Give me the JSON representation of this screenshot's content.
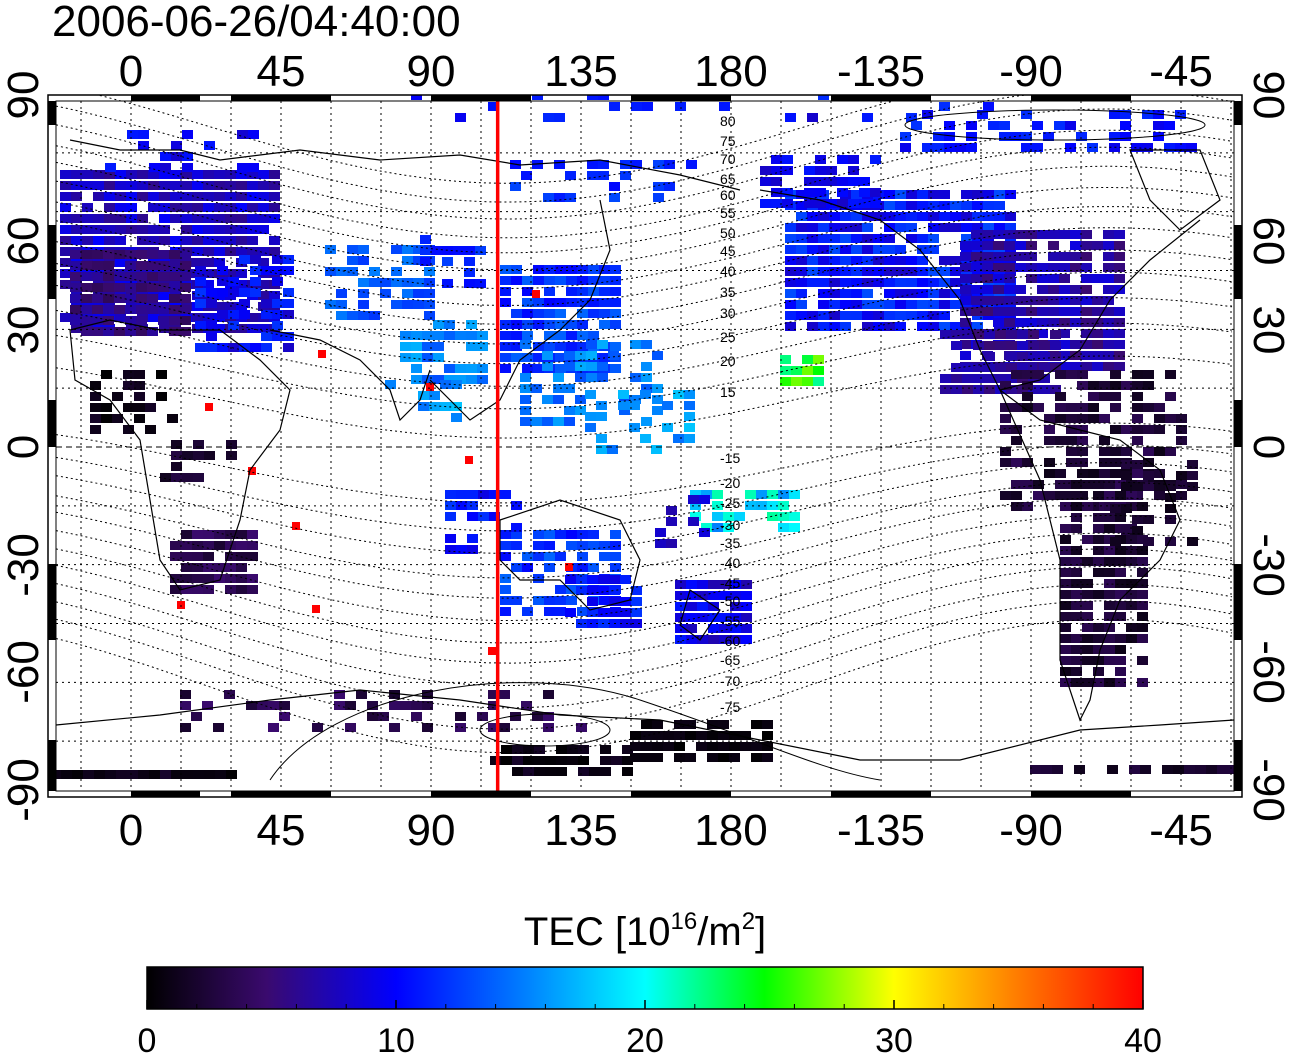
{
  "title": "2006-06-26/04:40:00",
  "map": {
    "longitude_ticks": [
      "0",
      "45",
      "90",
      "135",
      "180",
      "-135",
      "-90",
      "-45"
    ],
    "latitude_ticks": [
      "90",
      "60",
      "30",
      "0",
      "-30",
      "-60",
      "-90"
    ],
    "terminator_longitude": 110,
    "terminator_color": "#ff0000",
    "magnetic_contour_labels": [
      "80",
      "75",
      "70",
      "65",
      "60",
      "55",
      "50",
      "45",
      "40",
      "35",
      "30",
      "25",
      "20",
      "15",
      "-15",
      "-20",
      "-25",
      "-30",
      "-35",
      "-40",
      "-45",
      "-50",
      "-55",
      "-60",
      "-65",
      "-70",
      "-75"
    ]
  },
  "colorbar": {
    "title_prefix": "TEC  [10",
    "title_sup1": "16",
    "title_mid": "/m",
    "title_sup2": "2",
    "title_suffix": "]",
    "min": 0,
    "max": 40,
    "ticks": [
      "0",
      "10",
      "20",
      "30",
      "40"
    ],
    "stops": [
      "#000000",
      "#3a0a6e",
      "#0000ff",
      "#00ffff",
      "#00ff00",
      "#ffff00",
      "#ff8000",
      "#ff0000"
    ]
  }
}
